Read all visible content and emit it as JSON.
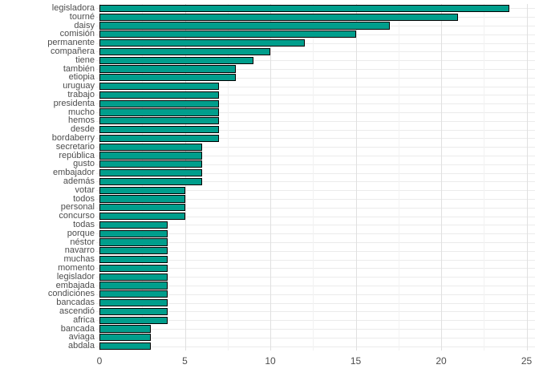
{
  "chart_data": {
    "type": "bar",
    "orientation": "horizontal",
    "title": "",
    "xlabel": "",
    "ylabel": "",
    "xlim": [
      0,
      25
    ],
    "x_ticks": [
      0,
      5,
      10,
      15,
      20,
      25
    ],
    "x_minor_ticks": [
      2.5,
      7.5,
      12.5,
      17.5,
      22.5
    ],
    "grid": true,
    "legend": "none",
    "bar_color": "#009e8c",
    "bar_border_color": "#000000",
    "axis_text_color": "#4d4d4d",
    "background_color": "#ffffff",
    "major_grid_color": "#e0e0e0",
    "minor_grid_color": "#f2f2f2",
    "categories": [
      "legisladora",
      "tourné",
      "daisy",
      "comisión",
      "permanente",
      "compañera",
      "tiene",
      "también",
      "etiopia",
      "uruguay",
      "trabajo",
      "presidenta",
      "mucho",
      "hemos",
      "desde",
      "bordaberry",
      "secretario",
      "república",
      "gusto",
      "embajador",
      "además",
      "votar",
      "todos",
      "personal",
      "concurso",
      "todas",
      "porque",
      "néstor",
      "navarro",
      "muchas",
      "momento",
      "legislador",
      "embajada",
      "condiciones",
      "bancadas",
      "ascendió",
      "africa",
      "bancada",
      "aviaga",
      "abdala"
    ],
    "values": [
      24,
      21,
      17,
      15,
      12,
      10,
      9,
      8,
      8,
      7,
      7,
      7,
      7,
      7,
      7,
      7,
      6,
      6,
      6,
      6,
      6,
      5,
      5,
      5,
      5,
      4,
      4,
      4,
      4,
      4,
      4,
      4,
      4,
      4,
      4,
      4,
      4,
      3,
      3,
      3
    ]
  }
}
